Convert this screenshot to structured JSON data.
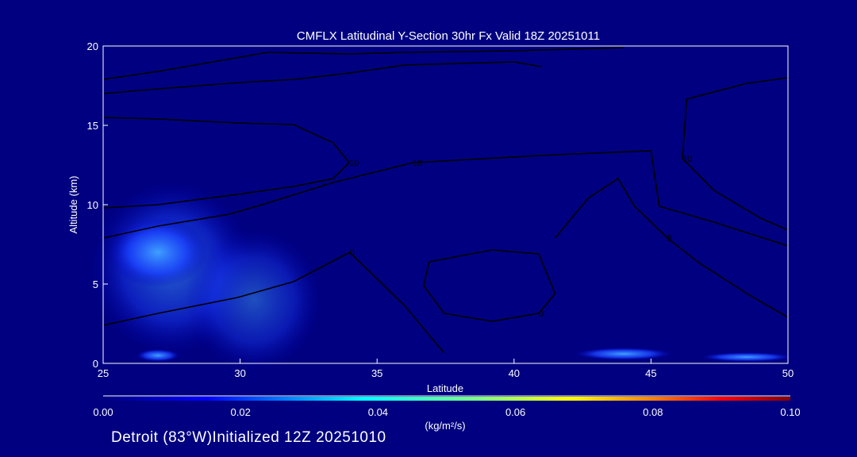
{
  "chart_data": {
    "type": "heatmap",
    "title": "CMFLX Latitudinal Y-Section 30hr  Fx Valid 18Z 20251011",
    "xlabel": "Latitude",
    "ylabel": "Altitude (km)",
    "xlim": [
      25,
      50
    ],
    "ylim": [
      0,
      20
    ],
    "xticks": [
      "25",
      "30",
      "35",
      "40",
      "45",
      "50"
    ],
    "yticks": [
      "0",
      "5",
      "10",
      "15",
      "20"
    ],
    "colorbar": {
      "min": 0,
      "max": 0.1,
      "ticks": [
        "0.00",
        "0.02",
        "0.04",
        "0.06",
        "0.08",
        "0.10"
      ],
      "unit": "(kg/m²/s)",
      "colors": [
        "#000080",
        "#0000ff",
        "#00ffff",
        "#7fff7f",
        "#ffff00",
        "#ff7f00",
        "#ff0000",
        "#800000"
      ]
    },
    "shaded_regions": [
      {
        "lat": 27.5,
        "alt": 6,
        "dlat": 3,
        "dalt": 5.5,
        "value": 0.012
      },
      {
        "lat": 27,
        "alt": 7,
        "dlat": 1.8,
        "dalt": 2.2,
        "value": 0.02
      },
      {
        "lat": 30.5,
        "alt": 4,
        "dlat": 2.5,
        "dalt": 4.5,
        "value": 0.01
      },
      {
        "lat": 27,
        "alt": 0.5,
        "dlat": 0.8,
        "dalt": 0.4,
        "value": 0.022
      },
      {
        "lat": 44,
        "alt": 0.6,
        "dlat": 1.8,
        "dalt": 0.4,
        "value": 0.02
      },
      {
        "lat": 48.5,
        "alt": 0.4,
        "dlat": 1.7,
        "dalt": 0.3,
        "value": 0.02
      }
    ],
    "contours": [
      {
        "level": "10",
        "points": [
          [
            25,
            15.5
          ],
          [
            27,
            15.4
          ],
          [
            29.9,
            15.15
          ],
          [
            31.95,
            15.05
          ],
          [
            33.4,
            13.9
          ],
          [
            33.98,
            12.65
          ],
          [
            33.4,
            11.65
          ],
          [
            31.95,
            11.15
          ],
          [
            29.9,
            10.65
          ],
          [
            27,
            10
          ],
          [
            25,
            9.8
          ]
        ]
      },
      {
        "level": "10",
        "points": [
          [
            25,
            7.9
          ],
          [
            27,
            8.65
          ],
          [
            29.6,
            9.4
          ],
          [
            30.8,
            10
          ],
          [
            33.4,
            11.4
          ],
          [
            36.3,
            12.65
          ],
          [
            41.5,
            13.15
          ],
          [
            45,
            13.4
          ],
          [
            45.3,
            9.9
          ],
          [
            47.3,
            8.9
          ],
          [
            50,
            7.4
          ]
        ]
      },
      {
        "level": "0",
        "points": [
          [
            36.9,
            6.4
          ],
          [
            39.2,
            7.15
          ],
          [
            40.9,
            6.9
          ],
          [
            41.5,
            4.4
          ],
          [
            40.9,
            3.15
          ],
          [
            39.2,
            2.65
          ],
          [
            37.45,
            3.15
          ],
          [
            36.7,
            4.9
          ],
          [
            36.9,
            6.4
          ]
        ]
      },
      {
        "level": "5",
        "points": [
          [
            41.5,
            7.9
          ],
          [
            42.7,
            10.4
          ],
          [
            43.8,
            11.65
          ],
          [
            44.4,
            9.9
          ],
          [
            45.6,
            7.9
          ],
          [
            46.7,
            6.4
          ],
          [
            48.5,
            4.4
          ],
          [
            50,
            2.9
          ]
        ]
      },
      {
        "level": "10",
        "points": [
          [
            50,
            18
          ],
          [
            48.5,
            17.65
          ],
          [
            46.3,
            16.65
          ],
          [
            46.15,
            12.9
          ],
          [
            47.3,
            10.9
          ],
          [
            49,
            9.15
          ],
          [
            50,
            8.4
          ]
        ]
      },
      {
        "level": "0",
        "points": [
          [
            25,
            2.4
          ],
          [
            27,
            3.15
          ],
          [
            29.9,
            4.15
          ],
          [
            31.95,
            5.15
          ],
          [
            34,
            7
          ],
          [
            35.1,
            5.15
          ],
          [
            36,
            3.65
          ],
          [
            37.45,
            0.65
          ]
        ]
      },
      {
        "level": "",
        "points": [
          [
            25,
            17.9
          ],
          [
            27,
            18.4
          ],
          [
            29,
            19
          ],
          [
            31,
            19.6
          ],
          [
            34,
            19.5
          ],
          [
            36,
            19.6
          ],
          [
            40,
            19.7
          ],
          [
            44,
            19.9
          ]
        ]
      },
      {
        "level": "",
        "points": [
          [
            25,
            17
          ],
          [
            27,
            17.3
          ],
          [
            30,
            17.7
          ],
          [
            32,
            17.9
          ],
          [
            34,
            18.3
          ],
          [
            36,
            18.8
          ],
          [
            40,
            19
          ],
          [
            41,
            18.7
          ]
        ]
      }
    ]
  },
  "footer": "Detroit (83°W)Initialized 12Z 20251010"
}
